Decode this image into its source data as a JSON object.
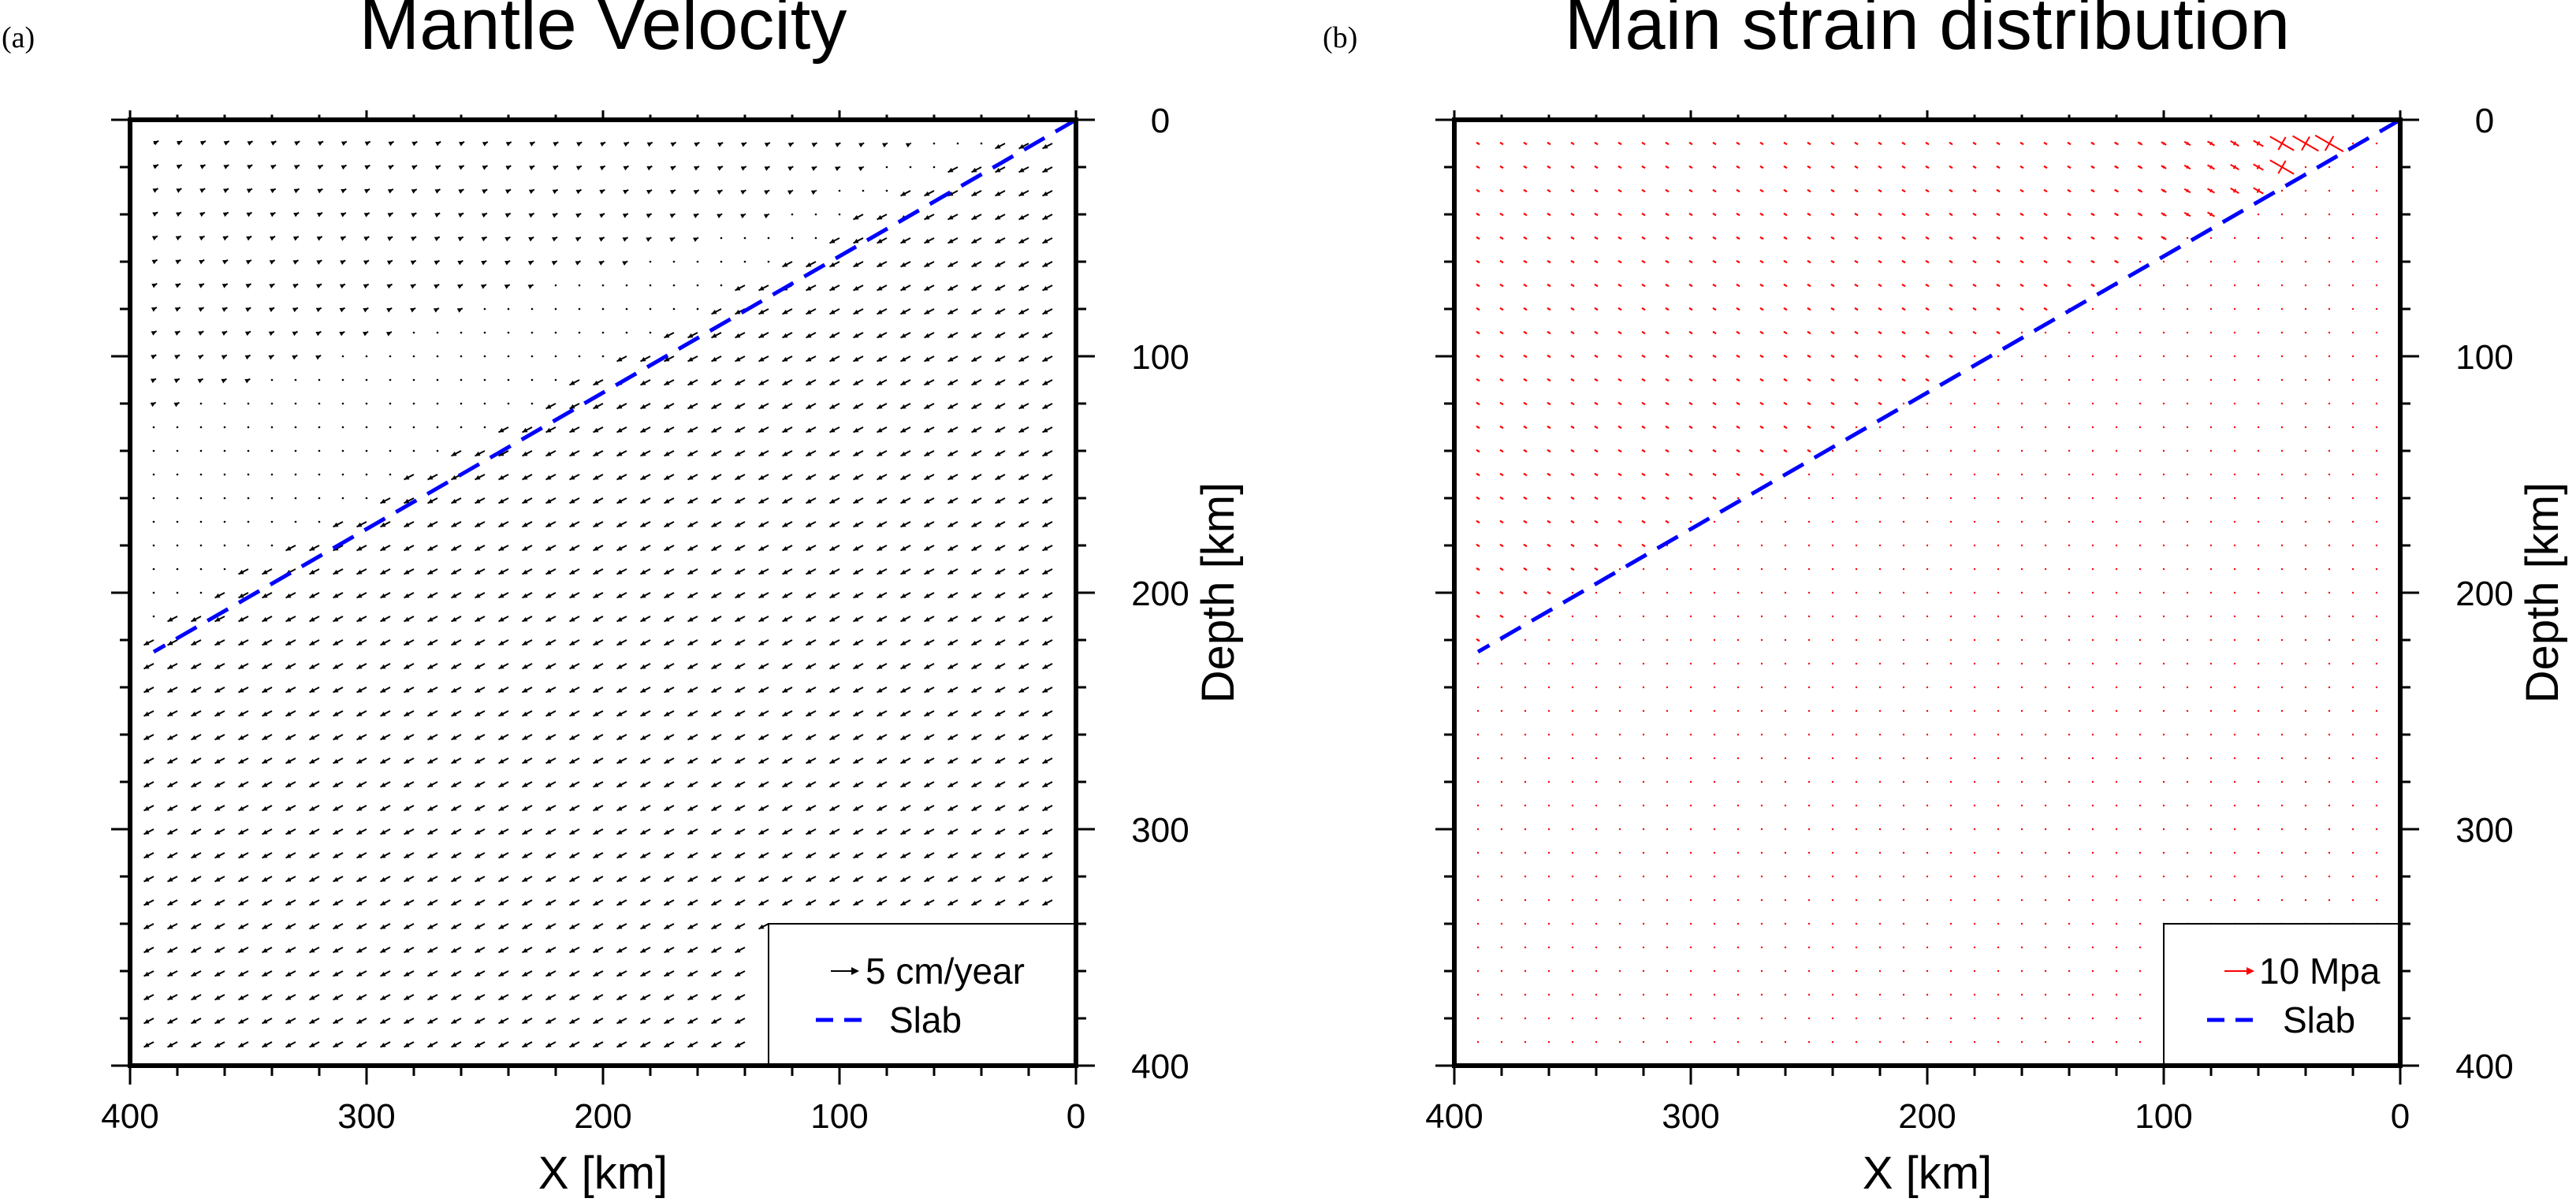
{
  "panels": [
    {
      "panel_label": "(a)",
      "title": "Mantle Velocity",
      "xlabel": "X [km]",
      "ylabel": "Depth [km]",
      "x_ticks": [
        "400",
        "300",
        "200",
        "100",
        "0"
      ],
      "y_ticks": [
        "0",
        "100",
        "200",
        "300",
        "400"
      ],
      "legend_vector_label": "5 cm/year",
      "legend_line_label": "Slab"
    },
    {
      "panel_label": "(b)",
      "title": "Main strain distribution",
      "xlabel": "X [km]",
      "ylabel": "Depth [km]",
      "x_ticks": [
        "400",
        "300",
        "200",
        "100",
        "0"
      ],
      "y_ticks": [
        "0",
        "100",
        "200",
        "300",
        "400"
      ],
      "legend_vector_label": "10 Mpa",
      "legend_line_label": "Slab"
    }
  ],
  "colors": {
    "velocity_vectors": "#000000",
    "strain_vectors": "#ff0000",
    "slab_line": "#0000ff",
    "frame": "#000000"
  },
  "chart_data": [
    {
      "type": "vector-field",
      "title": "Mantle Velocity",
      "xlabel": "X [km]",
      "ylabel": "Depth [km]",
      "xlim": [
        400,
        0
      ],
      "ylim": [
        0,
        400
      ],
      "x_reversed": true,
      "y_reversed": true,
      "grid_spacing_km": 10,
      "series": [
        {
          "name": "5 cm/year",
          "kind": "vectors",
          "description_value": "mantle flow velocity vectors; near zero in upper wedge, ~5 cm/year along and below the slab"
        },
        {
          "name": "Slab",
          "kind": "line",
          "style": "dashed",
          "x": [
            0,
            390
          ],
          "y": [
            0,
            225
          ]
        }
      ],
      "legend": "bottom-right"
    },
    {
      "type": "vector-field",
      "title": "Main strain distribution",
      "xlabel": "X [km]",
      "ylabel": "Depth [km]",
      "xlim": [
        400,
        0
      ],
      "ylim": [
        0,
        400
      ],
      "x_reversed": true,
      "y_reversed": true,
      "grid_spacing_km": 10,
      "series": [
        {
          "name": "10 Mpa",
          "kind": "strain-crosses",
          "description_value": "principal strain crosses above slab, largest near trench (x<80 km, depth<60 km); tiny dots below slab"
        },
        {
          "name": "Slab",
          "kind": "line",
          "style": "dashed",
          "x": [
            0,
            390
          ],
          "y": [
            0,
            225
          ]
        }
      ],
      "legend": "bottom-right"
    }
  ]
}
